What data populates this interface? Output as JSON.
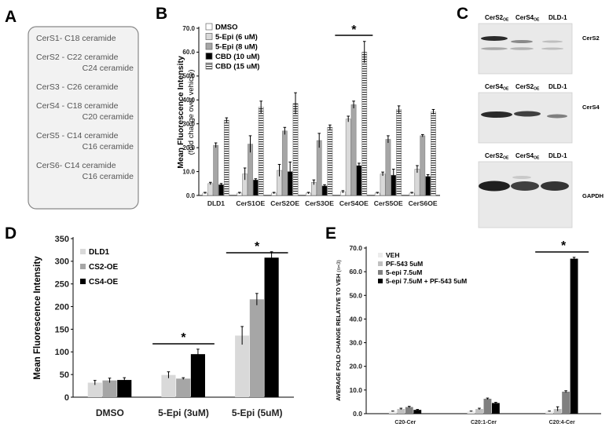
{
  "panel_a": {
    "letter": "A",
    "lines": [
      "CerS1- C18 ceramide",
      "CerS2 - C22 ceramide",
      "C24 ceramide",
      "CerS3 - C26 ceramide",
      "CerS4 - C18 ceramide",
      "C20 ceramide",
      "CerS5 - C14 ceramide",
      "C16 ceramide",
      "CerS6- C14 ceramide",
      "C16 ceramide"
    ]
  },
  "panel_c": {
    "letter": "C",
    "blots": [
      {
        "lanes": [
          "CerS2OE",
          "CerS4OE",
          "DLD-1"
        ],
        "protein": "CerS2"
      },
      {
        "lanes": [
          "CerS4OE",
          "CerS2OE",
          "DLD-1"
        ],
        "protein": "CerS4"
      },
      {
        "lanes": [
          "CerS2OE",
          "CerS4OE",
          "DLD-1"
        ],
        "protein": "GAPDH"
      }
    ]
  },
  "chart_data": [
    {
      "panel": "B",
      "type": "bar",
      "ylabel": "Mean Fluorescence Intensity",
      "ylabel2": "(fold change over vehicle)",
      "ylim": [
        0,
        70
      ],
      "yticks": [
        "0.0",
        "10.0",
        "20.0",
        "30.0",
        "40.0",
        "50.0",
        "60.0",
        "70.0"
      ],
      "categories": [
        "DLD1",
        "CerS1OE",
        "CerS2OE",
        "CerS3OE",
        "CerS4OE",
        "CerS5OE",
        "CerS6OE"
      ],
      "series": [
        {
          "name": "DMSO",
          "color": "#ffffff",
          "pattern": "none",
          "values": [
            1,
            1,
            1,
            1,
            1.5,
            1,
            1
          ],
          "errors": [
            0.3,
            0.3,
            0.3,
            0.3,
            0.5,
            0.3,
            0.3
          ]
        },
        {
          "name": "5-Epi (6 uM)",
          "color": "#d9d9d9",
          "pattern": "none",
          "values": [
            5,
            9,
            10.5,
            5.5,
            32,
            9,
            11
          ],
          "errors": [
            0.5,
            2.5,
            2.5,
            1,
            1.2,
            0.8,
            1.5
          ]
        },
        {
          "name": "5-Epi (8 uM)",
          "color": "#a6a6a6",
          "pattern": "none",
          "values": [
            21,
            21.5,
            27,
            23,
            38,
            23.5,
            25
          ],
          "errors": [
            1,
            3.5,
            1.5,
            3,
            1.5,
            1.5,
            0.5
          ]
        },
        {
          "name": "CBD (10 uM)",
          "color": "#000000",
          "pattern": "none",
          "values": [
            4.5,
            6.5,
            10,
            4,
            12.5,
            8.5,
            8
          ],
          "errors": [
            0.5,
            0.5,
            4,
            0.5,
            1,
            2.5,
            0.7
          ]
        },
        {
          "name": "CBD (15 uM)",
          "color": "#ffffff",
          "pattern": "hstripes",
          "values": [
            31.5,
            37,
            38.5,
            28.5,
            60,
            36,
            35
          ],
          "errors": [
            1,
            2.5,
            4.5,
            1,
            4.5,
            1.5,
            1
          ]
        }
      ],
      "legend_position": "top-left",
      "annotations": [
        {
          "text": "*",
          "category": "CerS4OE"
        }
      ]
    },
    {
      "panel": "D",
      "type": "bar",
      "ylabel": "Mean Fluorescence Intensity",
      "ylim": [
        0,
        350
      ],
      "yticks": [
        "0",
        "50",
        "100",
        "150",
        "200",
        "250",
        "300",
        "350"
      ],
      "categories": [
        "DMSO",
        "5-Epi (3uM)",
        "5-Epi (5uM)"
      ],
      "series": [
        {
          "name": "DLD1",
          "color": "#d9d9d9",
          "values": [
            32,
            49,
            136
          ],
          "errors": [
            5,
            7,
            20
          ]
        },
        {
          "name": "CS2-OE",
          "color": "#a6a6a6",
          "values": [
            37,
            41,
            216
          ],
          "errors": [
            5,
            2,
            13
          ]
        },
        {
          "name": "CS4-OE",
          "color": "#000000",
          "values": [
            38,
            95,
            308
          ],
          "errors": [
            5,
            11,
            13
          ]
        }
      ],
      "legend_position": "top-left",
      "annotations": [
        {
          "text": "*",
          "category": "5-Epi (3uM)"
        },
        {
          "text": "*",
          "category": "5-Epi (5uM)"
        }
      ]
    },
    {
      "panel": "E",
      "type": "bar",
      "ylabel": "AVERAGE FOLD CHANGE RELATIVE TO VEH",
      "ylabel_suffix": "(n=3)",
      "ylim": [
        0,
        70
      ],
      "yticks": [
        "0.0",
        "10.0",
        "20.0",
        "30.0",
        "40.0",
        "50.0",
        "60.0",
        "70.0"
      ],
      "categories": [
        "C20-Cer",
        "C20:1-Cer",
        "C20:4-Cer"
      ],
      "series": [
        {
          "name": "VEH",
          "color": "#ececec",
          "values": [
            1,
            1,
            1
          ],
          "errors": [
            0.1,
            0.1,
            0.1
          ]
        },
        {
          "name": "PF-543 5uM",
          "color": "#c0c0c0",
          "values": [
            2,
            2,
            2
          ],
          "errors": [
            0.3,
            0.3,
            0.9
          ]
        },
        {
          "name": "5-epi 7.5uM",
          "color": "#808080",
          "values": [
            2.8,
            6.3,
            9.3
          ],
          "errors": [
            0.3,
            0.3,
            0.4
          ]
        },
        {
          "name": "5-epi 7.5uM + PF-543 5uM",
          "color": "#000000",
          "values": [
            1.6,
            4.5,
            65.5
          ],
          "errors": [
            0.2,
            0.3,
            0.6
          ]
        }
      ],
      "legend_position": "top-left",
      "annotations": [
        {
          "text": "*",
          "category": "C20:4-Cer"
        }
      ]
    }
  ]
}
